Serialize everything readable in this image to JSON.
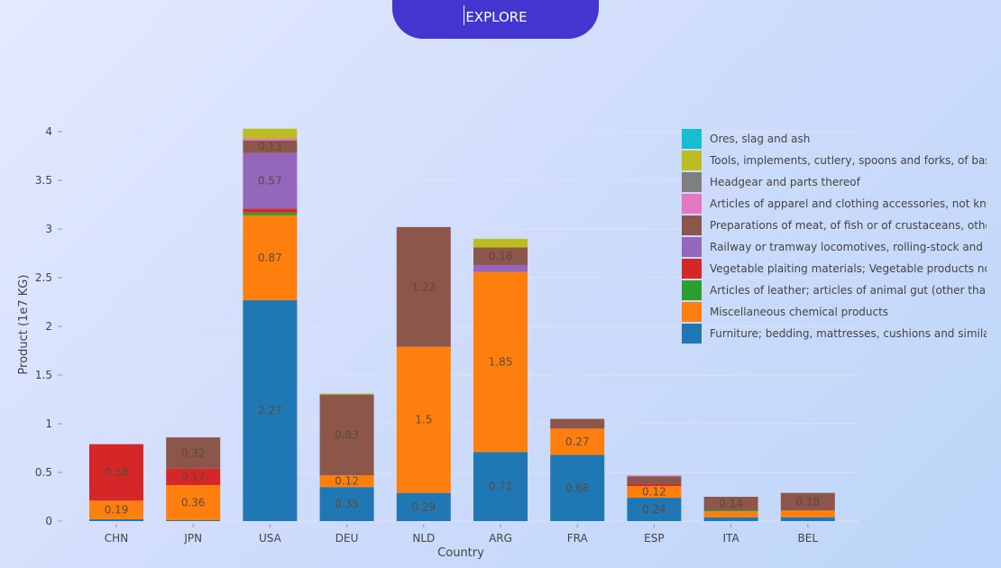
{
  "header": {
    "explore_label": "EXPLORE"
  },
  "chart_data": {
    "type": "bar",
    "stacked": true,
    "xlabel": "Country",
    "ylabel": "Product (1e7 KG)",
    "ylim": [
      0,
      4.2
    ],
    "yticks": [
      0,
      0.5,
      1,
      1.5,
      2,
      2.5,
      3,
      3.5,
      4
    ],
    "ytick_labels": [
      "0",
      "0.5",
      "1",
      "1.5",
      "2",
      "2.5",
      "3",
      "3.5",
      "4"
    ],
    "categories": [
      "CHN",
      "JPN",
      "USA",
      "DEU",
      "NLD",
      "ARG",
      "FRA",
      "ESP",
      "ITA",
      "BEL"
    ],
    "legend_position": "top-right",
    "series": [
      {
        "name": "Furniture; bedding, mattresses, cushions and similar stuffed furnishings",
        "color": "#1f77b4",
        "values": [
          0.02,
          0.01,
          2.27,
          0.35,
          0.29,
          0.71,
          0.68,
          0.24,
          0.04,
          0.04
        ],
        "labels": [
          "",
          "",
          "2.27",
          "0.35",
          "0.29",
          "0.71",
          "0.68",
          "0.24",
          "",
          ""
        ]
      },
      {
        "name": "Miscellaneous chemical products",
        "color": "#ff7f0e",
        "values": [
          0.19,
          0.36,
          0.87,
          0.12,
          1.5,
          1.85,
          0.27,
          0.12,
          0.06,
          0.07
        ],
        "labels": [
          "0.19",
          "0.36",
          "0.87",
          "0.12",
          "1.5",
          "1.85",
          "0.27",
          "0.12",
          "",
          ""
        ]
      },
      {
        "name": "Articles of leather; articles of animal gut (other than silk-worm gut)",
        "color": "#2ca02c",
        "values": [
          0,
          0,
          0.03,
          0,
          0,
          0,
          0,
          0,
          0.01,
          0
        ],
        "labels": [
          "",
          "",
          "",
          "",
          "",
          "",
          "",
          "",
          "",
          ""
        ]
      },
      {
        "name": "Vegetable plaiting materials; Vegetable products not elsewhere specified",
        "color": "#d62728",
        "values": [
          0.58,
          0.17,
          0.04,
          0,
          0,
          0,
          0,
          0.02,
          0,
          0
        ],
        "labels": [
          "0.58",
          "0.17",
          "",
          "",
          "",
          "",
          "",
          "",
          "",
          ""
        ]
      },
      {
        "name": "Railway or tramway locomotives, rolling-stock and parts thereof",
        "color": "#9467bd",
        "values": [
          0,
          0,
          0.57,
          0,
          0,
          0.07,
          0,
          0,
          0,
          0
        ],
        "labels": [
          "",
          "",
          "0.57",
          "",
          "",
          "",
          "",
          "",
          "",
          ""
        ]
      },
      {
        "name": "Preparations of meat, of fish or of crustaceans, other aquatic invertebrates",
        "color": "#8c564b",
        "values": [
          0,
          0.32,
          0.13,
          0.83,
          1.23,
          0.18,
          0.1,
          0.08,
          0.14,
          0.18
        ],
        "labels": [
          "",
          "0.32",
          "0.13",
          "0.83",
          "1.23",
          "0.18",
          "",
          "",
          "0.14",
          "0.18"
        ]
      },
      {
        "name": "Articles of apparel and clothing accessories, not knitted or crocheted",
        "color": "#e377c2",
        "values": [
          0,
          0,
          0.02,
          0,
          0,
          0,
          0,
          0.01,
          0,
          0
        ],
        "labels": [
          "",
          "",
          "",
          "",
          "",
          "",
          "",
          "",
          "",
          ""
        ]
      },
      {
        "name": "Headgear and parts thereof",
        "color": "#7f7f7f",
        "values": [
          0,
          0,
          0,
          0,
          0,
          0,
          0,
          0,
          0,
          0
        ],
        "labels": [
          "",
          "",
          "",
          "",
          "",
          "",
          "",
          "",
          "",
          ""
        ]
      },
      {
        "name": "Tools, implements, cutlery, spoons and forks, of base metal",
        "color": "#bcbd22",
        "values": [
          0,
          0,
          0.1,
          0.01,
          0,
          0.09,
          0,
          0,
          0,
          0
        ],
        "labels": [
          "",
          "",
          "",
          "",
          "",
          "",
          "",
          "",
          "",
          ""
        ]
      },
      {
        "name": "Ores, slag and ash",
        "color": "#17becf",
        "values": [
          0,
          0,
          0,
          0,
          0,
          0,
          0,
          0,
          0,
          0
        ],
        "labels": [
          "",
          "",
          "",
          "",
          "",
          "",
          "",
          "",
          "",
          ""
        ]
      }
    ]
  }
}
